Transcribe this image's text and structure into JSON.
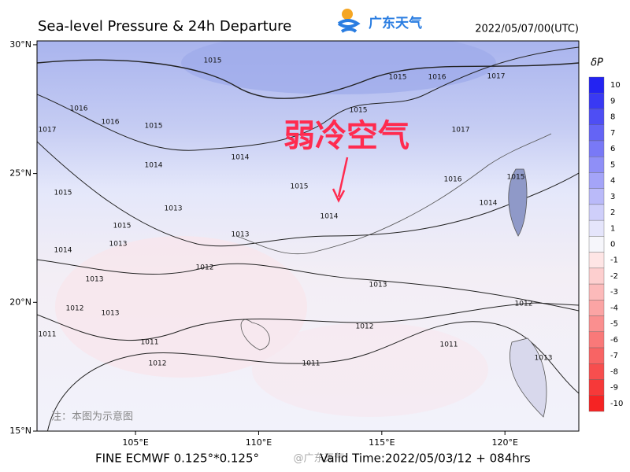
{
  "header": {
    "title": "Sea-level Pressure & 24h Departure",
    "logo": "广东天气",
    "date": "2022/05/07/00(UTC)"
  },
  "map": {
    "xlim": [
      101,
      123
    ],
    "ylim": [
      15,
      30.15
    ],
    "xticks": [
      {
        "value": 105,
        "label": "105°E"
      },
      {
        "value": 110,
        "label": "110°E"
      },
      {
        "value": 115,
        "label": "115°E"
      },
      {
        "value": 120,
        "label": "120°E"
      }
    ],
    "yticks": [
      {
        "value": 15,
        "label": "15°N"
      },
      {
        "value": 20,
        "label": "20°N"
      },
      {
        "value": 25,
        "label": "25°N"
      },
      {
        "value": 30,
        "label": "30°N"
      }
    ],
    "contour_labels": [
      "1015",
      "1015",
      "1016",
      "1017",
      "1016",
      "1016",
      "1015",
      "1017",
      "1015",
      "1017",
      "1014",
      "1014",
      "1016",
      "1015",
      "1015",
      "1015",
      "1013",
      "1014",
      "1014",
      "1015",
      "1013",
      "1014",
      "1013",
      "1012",
      "1013",
      "1013",
      "1012",
      "1012",
      "1013",
      "1012",
      "1011",
      "1011",
      "1011",
      "1012",
      "1011",
      "1013"
    ],
    "annotation": "弱冷空气",
    "note": "注：本图为示意图"
  },
  "colorbar": {
    "title": "δP",
    "ticks": [
      10,
      9,
      8,
      7,
      6,
      5,
      4,
      3,
      2,
      1,
      0,
      -1,
      -2,
      -3,
      -4,
      -5,
      -6,
      -7,
      -8,
      -9,
      -10
    ]
  },
  "footer": {
    "model": "FINE ECMWF 0.125°*0.125°",
    "watermark": "@广东天气",
    "valid": "Valid Time:2022/05/03/12 + 084hrs"
  }
}
